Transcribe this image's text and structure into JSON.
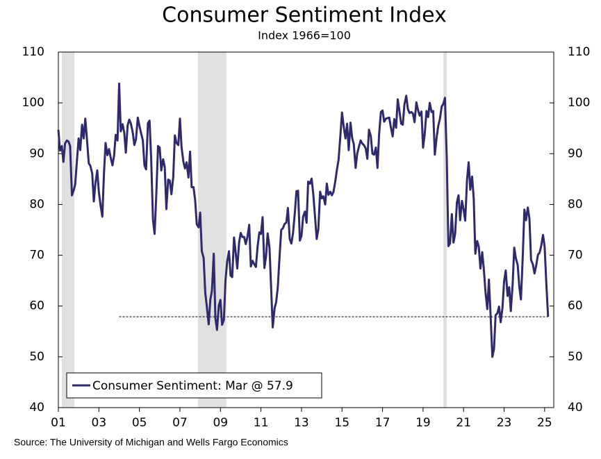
{
  "chart_data": {
    "type": "line",
    "title": "Consumer Sentiment Index",
    "subtitle": "Index 1966=100",
    "source": "Source: The University of Michigan and Wells Fargo Economics",
    "legend": "lower left",
    "x": [
      2001.0,
      2001.08,
      2001.17,
      2001.25,
      2001.33,
      2001.42,
      2001.5,
      2001.58,
      2001.67,
      2001.75,
      2001.83,
      2001.92,
      2002.0,
      2002.08,
      2002.17,
      2002.25,
      2002.33,
      2002.42,
      2002.5,
      2002.58,
      2002.67,
      2002.75,
      2002.83,
      2002.92,
      2003.0,
      2003.08,
      2003.17,
      2003.25,
      2003.33,
      2003.42,
      2003.5,
      2003.58,
      2003.67,
      2003.75,
      2003.83,
      2003.92,
      2004.0,
      2004.08,
      2004.17,
      2004.25,
      2004.33,
      2004.42,
      2004.5,
      2004.58,
      2004.67,
      2004.75,
      2004.83,
      2004.92,
      2005.0,
      2005.08,
      2005.17,
      2005.25,
      2005.33,
      2005.42,
      2005.5,
      2005.58,
      2005.67,
      2005.75,
      2005.83,
      2005.92,
      2006.0,
      2006.08,
      2006.17,
      2006.25,
      2006.33,
      2006.42,
      2006.5,
      2006.58,
      2006.67,
      2006.75,
      2006.83,
      2006.92,
      2007.0,
      2007.08,
      2007.17,
      2007.25,
      2007.33,
      2007.42,
      2007.5,
      2007.58,
      2007.67,
      2007.75,
      2007.83,
      2007.92,
      2008.0,
      2008.08,
      2008.17,
      2008.25,
      2008.33,
      2008.42,
      2008.5,
      2008.58,
      2008.67,
      2008.75,
      2008.83,
      2008.92,
      2009.0,
      2009.08,
      2009.17,
      2009.25,
      2009.33,
      2009.42,
      2009.5,
      2009.58,
      2009.67,
      2009.75,
      2009.83,
      2009.92,
      2010.0,
      2010.08,
      2010.17,
      2010.25,
      2010.33,
      2010.42,
      2010.5,
      2010.58,
      2010.67,
      2010.75,
      2010.83,
      2010.92,
      2011.0,
      2011.08,
      2011.17,
      2011.25,
      2011.33,
      2011.42,
      2011.5,
      2011.58,
      2011.67,
      2011.75,
      2011.83,
      2011.92,
      2012.0,
      2012.08,
      2012.17,
      2012.25,
      2012.33,
      2012.42,
      2012.5,
      2012.58,
      2012.67,
      2012.75,
      2012.83,
      2012.92,
      2013.0,
      2013.08,
      2013.17,
      2013.25,
      2013.33,
      2013.42,
      2013.5,
      2013.58,
      2013.67,
      2013.75,
      2013.83,
      2013.92,
      2014.0,
      2014.08,
      2014.17,
      2014.25,
      2014.33,
      2014.42,
      2014.5,
      2014.58,
      2014.67,
      2014.75,
      2014.83,
      2014.92,
      2015.0,
      2015.08,
      2015.17,
      2015.25,
      2015.33,
      2015.42,
      2015.5,
      2015.58,
      2015.67,
      2015.75,
      2015.83,
      2015.92,
      2016.0,
      2016.08,
      2016.17,
      2016.25,
      2016.33,
      2016.42,
      2016.5,
      2016.58,
      2016.67,
      2016.75,
      2016.83,
      2016.92,
      2017.0,
      2017.08,
      2017.17,
      2017.25,
      2017.33,
      2017.42,
      2017.5,
      2017.58,
      2017.67,
      2017.75,
      2017.83,
      2017.92,
      2018.0,
      2018.08,
      2018.17,
      2018.25,
      2018.33,
      2018.42,
      2018.5,
      2018.58,
      2018.67,
      2018.75,
      2018.83,
      2018.92,
      2019.0,
      2019.08,
      2019.17,
      2019.25,
      2019.33,
      2019.42,
      2019.5,
      2019.58,
      2019.67,
      2019.75,
      2019.83,
      2019.92,
      2020.0,
      2020.08,
      2020.17,
      2020.25,
      2020.33,
      2020.42,
      2020.5,
      2020.58,
      2020.67,
      2020.75,
      2020.83,
      2020.92,
      2021.0,
      2021.08,
      2021.17,
      2021.25,
      2021.33,
      2021.42,
      2021.5,
      2021.58,
      2021.67,
      2021.75,
      2021.83,
      2021.92,
      2022.0,
      2022.08,
      2022.17,
      2022.25,
      2022.33,
      2022.42,
      2022.5,
      2022.58,
      2022.67,
      2022.75,
      2022.83,
      2022.92,
      2023.0,
      2023.08,
      2023.17,
      2023.25,
      2023.33,
      2023.42,
      2023.5,
      2023.58,
      2023.67,
      2023.75,
      2023.83,
      2023.92,
      2024.0,
      2024.08,
      2024.17,
      2024.25,
      2024.33,
      2024.42,
      2024.5,
      2024.58,
      2024.67,
      2024.75,
      2024.83,
      2024.92,
      2025.0,
      2025.08,
      2025.17
    ],
    "series": [
      {
        "name": "Consumer Sentiment: Mar @ 57.9",
        "color": "#2e2a6b",
        "values": [
          94.7,
          90.6,
          91.5,
          88.4,
          92.0,
          92.6,
          92.4,
          91.5,
          81.8,
          82.7,
          83.9,
          88.8,
          93.0,
          90.7,
          95.7,
          93.0,
          96.9,
          92.4,
          88.1,
          87.6,
          86.1,
          80.6,
          84.2,
          86.7,
          82.4,
          79.9,
          77.6,
          86.0,
          92.1,
          89.7,
          90.9,
          89.3,
          87.7,
          89.6,
          93.7,
          92.6,
          103.8,
          94.4,
          95.8,
          94.2,
          90.2,
          95.6,
          96.7,
          95.9,
          94.2,
          91.7,
          92.8,
          97.1,
          95.5,
          94.1,
          92.6,
          87.7,
          86.9,
          96.0,
          96.5,
          89.1,
          76.9,
          74.2,
          81.6,
          91.5,
          91.2,
          86.7,
          88.9,
          87.4,
          79.1,
          84.9,
          84.7,
          82.0,
          85.4,
          93.6,
          92.1,
          91.7,
          96.9,
          91.3,
          88.4,
          87.1,
          88.3,
          85.3,
          90.4,
          83.4,
          83.4,
          80.9,
          76.1,
          75.5,
          78.4,
          70.8,
          69.5,
          62.6,
          59.8,
          56.4,
          61.2,
          63.0,
          70.3,
          57.6,
          55.3,
          60.1,
          61.2,
          56.3,
          57.3,
          65.1,
          68.7,
          70.8,
          66.0,
          65.7,
          73.5,
          70.6,
          67.4,
          72.5,
          74.4,
          73.6,
          73.6,
          72.2,
          73.6,
          76.0,
          67.8,
          68.9,
          68.2,
          67.7,
          71.6,
          74.5,
          74.2,
          77.5,
          67.5,
          69.8,
          74.3,
          71.5,
          63.7,
          55.8,
          59.5,
          60.8,
          63.7,
          69.9,
          75.0,
          75.3,
          76.2,
          76.4,
          79.3,
          73.2,
          72.3,
          74.3,
          78.3,
          82.6,
          82.7,
          72.9,
          73.8,
          77.6,
          78.6,
          76.4,
          84.5,
          84.1,
          85.1,
          82.1,
          77.5,
          73.2,
          75.1,
          82.5,
          81.2,
          81.6,
          80.0,
          84.1,
          81.9,
          82.5,
          81.8,
          82.5,
          84.6,
          86.9,
          88.8,
          93.6,
          98.1,
          95.4,
          93.0,
          95.9,
          90.7,
          96.1,
          93.1,
          91.9,
          87.2,
          90.0,
          91.3,
          92.6,
          92.0,
          91.7,
          91.0,
          89.0,
          94.7,
          93.5,
          90.0,
          89.8,
          91.2,
          87.2,
          93.8,
          98.2,
          98.5,
          96.3,
          96.9,
          97.0,
          97.1,
          95.0,
          93.4,
          96.8,
          95.1,
          100.7,
          98.5,
          95.9,
          95.7,
          99.7,
          101.4,
          98.8,
          98.0,
          98.2,
          97.9,
          96.2,
          100.1,
          98.6,
          97.5,
          98.3,
          91.2,
          93.8,
          98.4,
          97.2,
          100.0,
          98.2,
          98.4,
          89.8,
          93.2,
          95.5,
          96.8,
          99.3,
          99.8,
          101.0,
          89.1,
          71.8,
          72.3,
          78.1,
          72.5,
          74.1,
          80.4,
          81.8,
          76.9,
          80.7,
          79.0,
          76.8,
          84.9,
          88.3,
          82.9,
          85.5,
          81.2,
          70.3,
          72.8,
          71.7,
          67.4,
          70.6,
          67.2,
          62.8,
          59.4,
          65.2,
          58.4,
          50.0,
          51.5,
          58.2,
          58.6,
          59.9,
          56.8,
          59.7,
          64.9,
          67.0,
          62.0,
          63.7,
          59.0,
          64.2,
          71.5,
          69.4,
          68.1,
          63.8,
          61.3,
          69.7,
          79.0,
          76.9,
          79.4,
          77.2,
          69.1,
          68.2,
          66.4,
          67.9,
          70.1,
          70.5,
          71.8,
          74.0,
          71.7,
          64.7,
          57.9
        ]
      }
    ],
    "recessions": [
      [
        2001.17,
        2001.79
      ],
      [
        2007.89,
        2009.29
      ],
      [
        2020.0,
        2020.17
      ]
    ],
    "recession_color": "#e0e0e0",
    "reference_line": {
      "value": 57.9,
      "x_start": 2004.0,
      "x_end": 2025.17
    },
    "xlim": [
      2001,
      2025.45
    ],
    "xticks": [
      {
        "value": 2001,
        "label": "01"
      },
      {
        "value": 2003,
        "label": "03"
      },
      {
        "value": 2005,
        "label": "05"
      },
      {
        "value": 2007,
        "label": "07"
      },
      {
        "value": 2009,
        "label": "09"
      },
      {
        "value": 2011,
        "label": "11"
      },
      {
        "value": 2013,
        "label": "13"
      },
      {
        "value": 2015,
        "label": "15"
      },
      {
        "value": 2017,
        "label": "17"
      },
      {
        "value": 2019,
        "label": "19"
      },
      {
        "value": 2021,
        "label": "21"
      },
      {
        "value": 2023,
        "label": "23"
      },
      {
        "value": 2025,
        "label": "25"
      }
    ],
    "ylim": [
      40,
      110
    ],
    "yticks": [
      40,
      50,
      60,
      70,
      80,
      90,
      100,
      110
    ],
    "y2lim": [
      40,
      110
    ],
    "y2ticks": [
      40,
      50,
      60,
      70,
      80,
      90,
      100,
      110
    ]
  }
}
